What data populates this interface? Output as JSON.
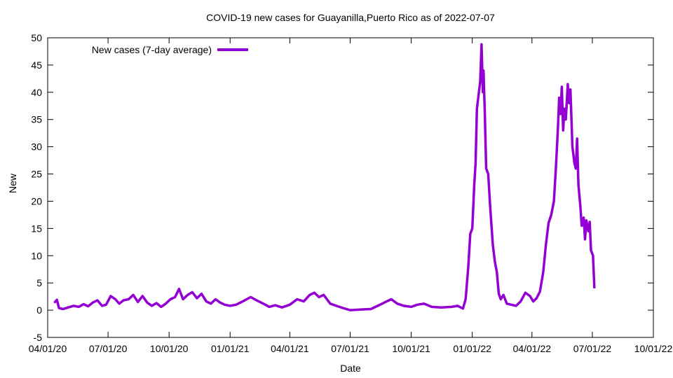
{
  "chart_data": {
    "type": "line",
    "title": "COVID-19 new cases for Guayanilla,Puerto Rico as of 2022-07-07",
    "xlabel": "Date",
    "ylabel": "New",
    "ylim": [
      -5,
      50
    ],
    "y_ticks": [
      "-5",
      "0",
      "5",
      "10",
      "15",
      "20",
      "25",
      "30",
      "35",
      "40",
      "45",
      "50"
    ],
    "x_ticks": [
      "04/01/20",
      "07/01/20",
      "10/01/20",
      "01/01/21",
      "04/01/21",
      "07/01/21",
      "10/01/21",
      "01/01/22",
      "04/01/22",
      "07/01/22",
      "10/01/22"
    ],
    "grid": false,
    "legend_placement": "top-left",
    "color": "#9400d3",
    "series": [
      {
        "name": "New cases (7-day average)",
        "points": [
          [
            "2020-04-12",
            1.5
          ],
          [
            "2020-04-15",
            1.9
          ],
          [
            "2020-04-18",
            0.4
          ],
          [
            "2020-04-24",
            0.2
          ],
          [
            "2020-05-02",
            0.5
          ],
          [
            "2020-05-10",
            0.8
          ],
          [
            "2020-05-18",
            0.6
          ],
          [
            "2020-05-25",
            1.1
          ],
          [
            "2020-06-01",
            0.7
          ],
          [
            "2020-06-08",
            1.4
          ],
          [
            "2020-06-15",
            1.8
          ],
          [
            "2020-06-22",
            0.8
          ],
          [
            "2020-06-28",
            1.0
          ],
          [
            "2020-07-05",
            2.6
          ],
          [
            "2020-07-12",
            2.0
          ],
          [
            "2020-07-18",
            1.2
          ],
          [
            "2020-07-24",
            1.8
          ],
          [
            "2020-08-01",
            2.0
          ],
          [
            "2020-08-08",
            2.8
          ],
          [
            "2020-08-15",
            1.5
          ],
          [
            "2020-08-22",
            2.6
          ],
          [
            "2020-08-29",
            1.4
          ],
          [
            "2020-09-05",
            0.8
          ],
          [
            "2020-09-12",
            1.3
          ],
          [
            "2020-09-19",
            0.6
          ],
          [
            "2020-09-26",
            1.2
          ],
          [
            "2020-10-03",
            2.0
          ],
          [
            "2020-10-10",
            2.4
          ],
          [
            "2020-10-16",
            3.9
          ],
          [
            "2020-10-22",
            2.0
          ],
          [
            "2020-10-29",
            2.8
          ],
          [
            "2020-11-05",
            3.3
          ],
          [
            "2020-11-12",
            2.2
          ],
          [
            "2020-11-19",
            3.0
          ],
          [
            "2020-11-26",
            1.6
          ],
          [
            "2020-12-03",
            1.2
          ],
          [
            "2020-12-10",
            2.0
          ],
          [
            "2020-12-17",
            1.4
          ],
          [
            "2020-12-24",
            1.0
          ],
          [
            "2021-01-01",
            0.8
          ],
          [
            "2021-01-10",
            1.0
          ],
          [
            "2021-01-20",
            1.6
          ],
          [
            "2021-02-01",
            2.4
          ],
          [
            "2021-02-10",
            1.8
          ],
          [
            "2021-02-20",
            1.2
          ],
          [
            "2021-03-01",
            0.6
          ],
          [
            "2021-03-10",
            0.9
          ],
          [
            "2021-03-20",
            0.5
          ],
          [
            "2021-04-01",
            1.0
          ],
          [
            "2021-04-12",
            2.0
          ],
          [
            "2021-04-22",
            1.6
          ],
          [
            "2021-05-01",
            2.8
          ],
          [
            "2021-05-08",
            3.2
          ],
          [
            "2021-05-15",
            2.4
          ],
          [
            "2021-05-22",
            2.8
          ],
          [
            "2021-06-01",
            1.2
          ],
          [
            "2021-06-10",
            0.8
          ],
          [
            "2021-06-20",
            0.4
          ],
          [
            "2021-07-01",
            0.0
          ],
          [
            "2021-07-15",
            0.1
          ],
          [
            "2021-08-01",
            0.2
          ],
          [
            "2021-08-15",
            1.0
          ],
          [
            "2021-08-25",
            1.6
          ],
          [
            "2021-09-01",
            2.0
          ],
          [
            "2021-09-10",
            1.2
          ],
          [
            "2021-09-20",
            0.8
          ],
          [
            "2021-10-01",
            0.6
          ],
          [
            "2021-10-10",
            1.0
          ],
          [
            "2021-10-20",
            1.2
          ],
          [
            "2021-11-01",
            0.6
          ],
          [
            "2021-11-15",
            0.5
          ],
          [
            "2021-12-01",
            0.6
          ],
          [
            "2021-12-10",
            0.8
          ],
          [
            "2021-12-18",
            0.3
          ],
          [
            "2021-12-22",
            2.0
          ],
          [
            "2021-12-26",
            8.0
          ],
          [
            "2021-12-29",
            14.0
          ],
          [
            "2022-01-01",
            15.0
          ],
          [
            "2022-01-04",
            23.0
          ],
          [
            "2022-01-06",
            27.0
          ],
          [
            "2022-01-08",
            37.0
          ],
          [
            "2022-01-10",
            39.0
          ],
          [
            "2022-01-13",
            42.0
          ],
          [
            "2022-01-15",
            48.8
          ],
          [
            "2022-01-17",
            40.0
          ],
          [
            "2022-01-18",
            44.0
          ],
          [
            "2022-01-20",
            36.0
          ],
          [
            "2022-01-22",
            26.0
          ],
          [
            "2022-01-25",
            25.0
          ],
          [
            "2022-01-28",
            19.0
          ],
          [
            "2022-02-01",
            12.0
          ],
          [
            "2022-02-04",
            9.0
          ],
          [
            "2022-02-07",
            7.0
          ],
          [
            "2022-02-10",
            3.0
          ],
          [
            "2022-02-13",
            2.0
          ],
          [
            "2022-02-17",
            2.8
          ],
          [
            "2022-02-22",
            1.2
          ],
          [
            "2022-03-01",
            1.0
          ],
          [
            "2022-03-08",
            0.8
          ],
          [
            "2022-03-15",
            1.6
          ],
          [
            "2022-03-22",
            3.2
          ],
          [
            "2022-03-29",
            2.6
          ],
          [
            "2022-04-03",
            1.6
          ],
          [
            "2022-04-08",
            2.2
          ],
          [
            "2022-04-13",
            3.4
          ],
          [
            "2022-04-18",
            7.0
          ],
          [
            "2022-04-22",
            12.0
          ],
          [
            "2022-04-26",
            16.0
          ],
          [
            "2022-04-30",
            17.5
          ],
          [
            "2022-05-04",
            20.0
          ],
          [
            "2022-05-07",
            26.0
          ],
          [
            "2022-05-10",
            33.0
          ],
          [
            "2022-05-12",
            39.0
          ],
          [
            "2022-05-14",
            36.0
          ],
          [
            "2022-05-16",
            41.0
          ],
          [
            "2022-05-18",
            33.0
          ],
          [
            "2022-05-20",
            37.0
          ],
          [
            "2022-05-22",
            35.0
          ],
          [
            "2022-05-25",
            41.5
          ],
          [
            "2022-05-27",
            38.0
          ],
          [
            "2022-05-29",
            40.5
          ],
          [
            "2022-06-01",
            30.0
          ],
          [
            "2022-06-04",
            27.0
          ],
          [
            "2022-06-06",
            26.0
          ],
          [
            "2022-06-08",
            31.5
          ],
          [
            "2022-06-10",
            23.0
          ],
          [
            "2022-06-13",
            19.0
          ],
          [
            "2022-06-15",
            15.5
          ],
          [
            "2022-06-18",
            17.0
          ],
          [
            "2022-06-20",
            13.0
          ],
          [
            "2022-06-22",
            16.5
          ],
          [
            "2022-06-25",
            14.5
          ],
          [
            "2022-06-27",
            16.2
          ],
          [
            "2022-06-29",
            11.0
          ],
          [
            "2022-07-02",
            10.0
          ],
          [
            "2022-07-04",
            4.2
          ]
        ]
      }
    ]
  }
}
